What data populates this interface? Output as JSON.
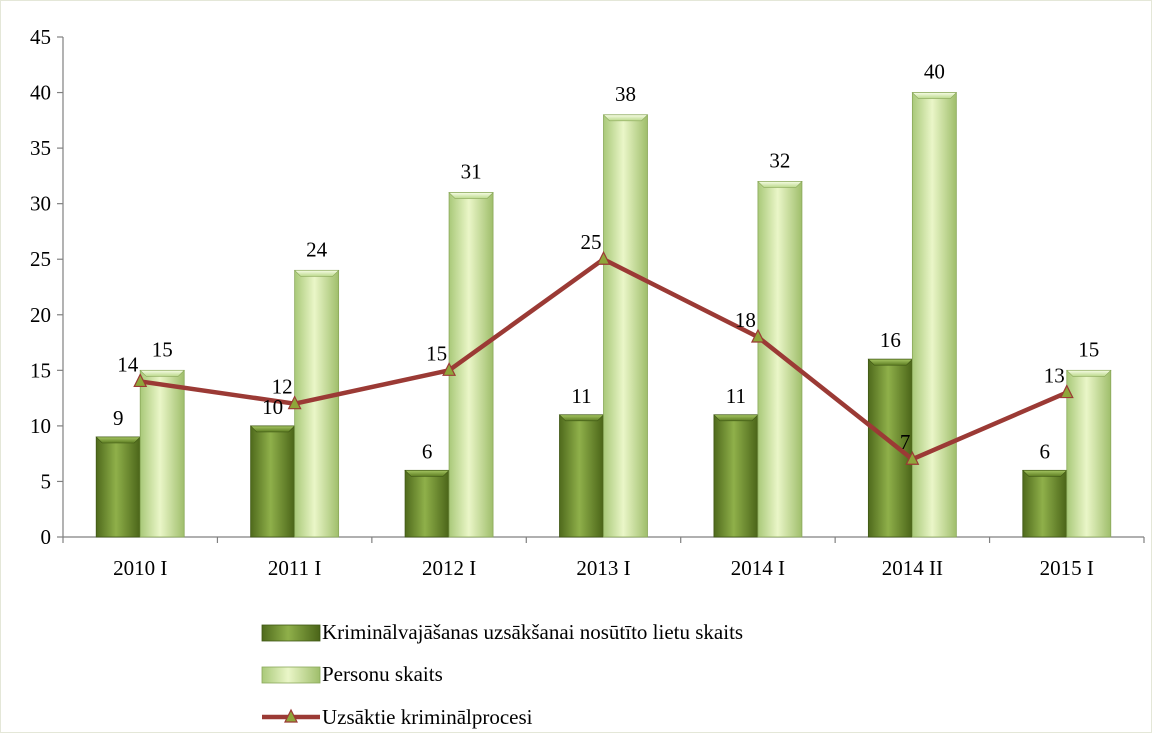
{
  "chart_data": {
    "type": "bar",
    "title": "",
    "xlabel": "",
    "ylabel": "",
    "categories": [
      "2010 I",
      "2011 I",
      "2012 I",
      "2013 I",
      "2014 I",
      "2014 II",
      "2015 I"
    ],
    "ylim": [
      0,
      45
    ],
    "yticks": [
      0,
      5,
      10,
      15,
      20,
      25,
      30,
      35,
      40,
      45
    ],
    "grid": false,
    "legend_position": "bottom",
    "series": [
      {
        "name": "Kriminālvajāšanas uzsākšanai nosūtīto lietu skaits",
        "kind": "bar",
        "color": "#6e8f2e",
        "values": [
          9,
          10,
          6,
          11,
          11,
          16,
          6
        ]
      },
      {
        "name": "Personu skaits",
        "kind": "bar",
        "color": "#cfe6a0",
        "values": [
          15,
          24,
          31,
          38,
          32,
          40,
          15
        ]
      },
      {
        "name": "Uzsāktie kriminālprocesi",
        "kind": "line",
        "color": "#9b3a35",
        "marker_color": "#8fa63a",
        "values": [
          14,
          12,
          15,
          25,
          18,
          7,
          13
        ]
      }
    ]
  }
}
